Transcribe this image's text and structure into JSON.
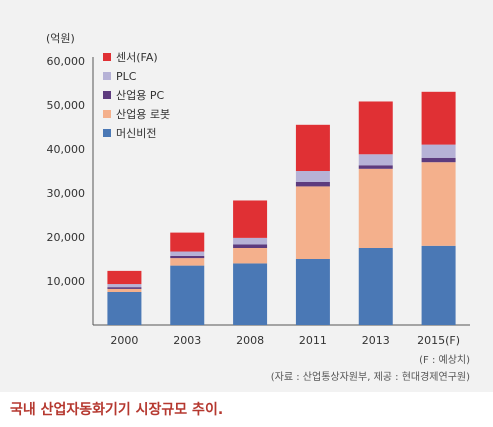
{
  "chart_data": {
    "type": "bar",
    "stacked": true,
    "unit_label": "(억원)",
    "categories": [
      "2000",
      "2003",
      "2008",
      "2011",
      "2013",
      "2015(F)"
    ],
    "series": [
      {
        "name": "머신비전",
        "color": "#4a78b5",
        "values": [
          7500,
          13500,
          14000,
          15000,
          17500,
          18000
        ]
      },
      {
        "name": "산업용 로봇",
        "color": "#f4b08c",
        "values": [
          700,
          1700,
          3500,
          16500,
          18000,
          19000
        ]
      },
      {
        "name": "산업용 PC",
        "color": "#5d3b7e",
        "values": [
          400,
          500,
          800,
          1000,
          800,
          1000
        ]
      },
      {
        "name": "PLC",
        "color": "#b6b2d6",
        "values": [
          700,
          1000,
          1500,
          2500,
          2500,
          3000
        ]
      },
      {
        "name": "센서(FA)",
        "color": "#e03034",
        "values": [
          3000,
          4300,
          8500,
          10500,
          12000,
          12000
        ]
      }
    ],
    "ylim": [
      0,
      60000
    ],
    "yticks": [
      "10,000",
      "20,000",
      "30,000",
      "40,000",
      "50,000",
      "60,000"
    ],
    "legend_position": "top-left",
    "notes": [
      "(F : 예상치)",
      "(자료 : 산업통상자원부, 제공 : 현대경제연구원)"
    ]
  },
  "caption": "국내 산업자동화기기 시장규모 추이."
}
